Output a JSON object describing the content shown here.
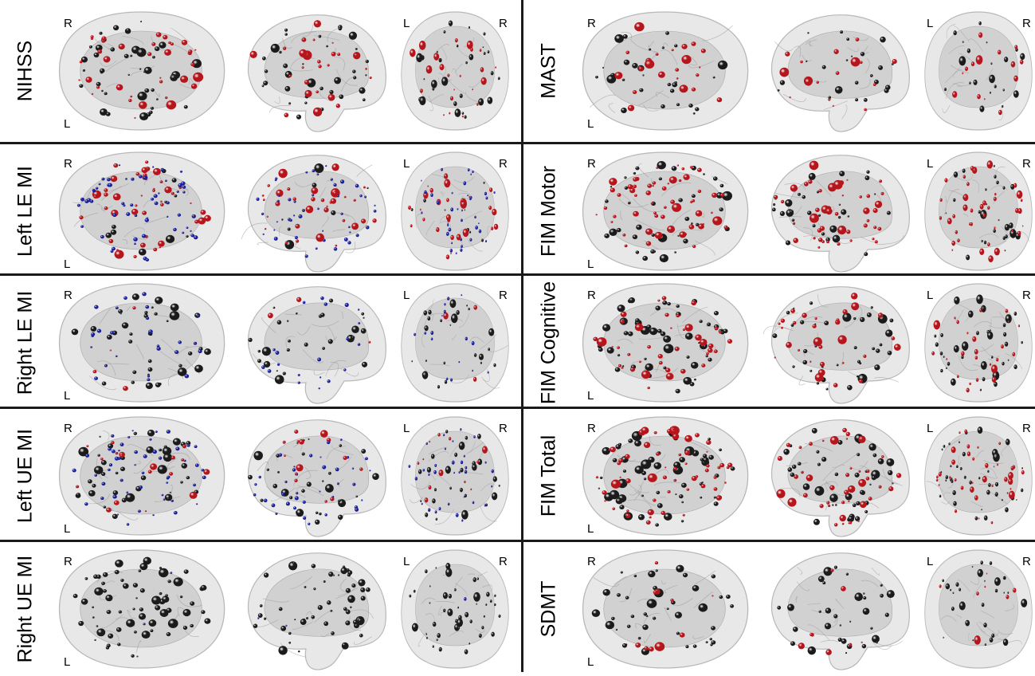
{
  "colors": {
    "background": "#ffffff",
    "divider": "#1a1a1a",
    "brain_outer": "#e8e8e8",
    "brain_inner": "#c9c9c9",
    "node_black": "#1b1b1b",
    "node_red": "#b5151b",
    "node_blue": "#1a1f9a"
  },
  "panels": [
    {
      "label": "NIHSS",
      "axial": [
        "R",
        "L"
      ],
      "coronal": [
        "L",
        "R"
      ],
      "seed": 11,
      "nodes": {
        "black": 46,
        "red": 36,
        "blue": 0
      }
    },
    {
      "label": "MAST",
      "axial": [
        "R",
        "L"
      ],
      "coronal": [
        "L",
        "R"
      ],
      "seed": 23,
      "nodes": {
        "black": 30,
        "red": 22,
        "blue": 0
      }
    },
    {
      "label": "Left LE MI",
      "axial": [
        "R",
        "L"
      ],
      "coronal": [
        "L",
        "R"
      ],
      "seed": 37,
      "nodes": {
        "black": 10,
        "red": 44,
        "blue": 60
      }
    },
    {
      "label": "FIM Motor",
      "axial": [
        "R",
        "L"
      ],
      "coronal": [
        "L",
        "R"
      ],
      "seed": 41,
      "nodes": {
        "black": 40,
        "red": 58,
        "blue": 0
      }
    },
    {
      "label": "Right LE MI",
      "axial": [
        "R",
        "L"
      ],
      "coronal": [
        "L",
        "R"
      ],
      "seed": 53,
      "nodes": {
        "black": 36,
        "red": 4,
        "blue": 26
      }
    },
    {
      "label": "FIM Cognitive",
      "axial": [
        "R",
        "L"
      ],
      "coronal": [
        "L",
        "R"
      ],
      "seed": 67,
      "nodes": {
        "black": 54,
        "red": 40,
        "blue": 0
      }
    },
    {
      "label": "Left UE MI",
      "axial": [
        "R",
        "L"
      ],
      "coronal": [
        "L",
        "R"
      ],
      "seed": 71,
      "nodes": {
        "black": 40,
        "red": 18,
        "blue": 50
      }
    },
    {
      "label": "FIM Total",
      "axial": [
        "R",
        "L"
      ],
      "coronal": [
        "L",
        "R"
      ],
      "seed": 83,
      "nodes": {
        "black": 60,
        "red": 56,
        "blue": 0
      }
    },
    {
      "label": "Right UE MI",
      "axial": [
        "R",
        "L"
      ],
      "coronal": [
        "L",
        "R"
      ],
      "seed": 97,
      "nodes": {
        "black": 70,
        "red": 0,
        "blue": 2
      }
    },
    {
      "label": "SDMT",
      "axial": [
        "R",
        "L"
      ],
      "coronal": [
        "L",
        "R"
      ],
      "seed": 101,
      "nodes": {
        "black": 44,
        "red": 10,
        "blue": 0
      }
    }
  ]
}
